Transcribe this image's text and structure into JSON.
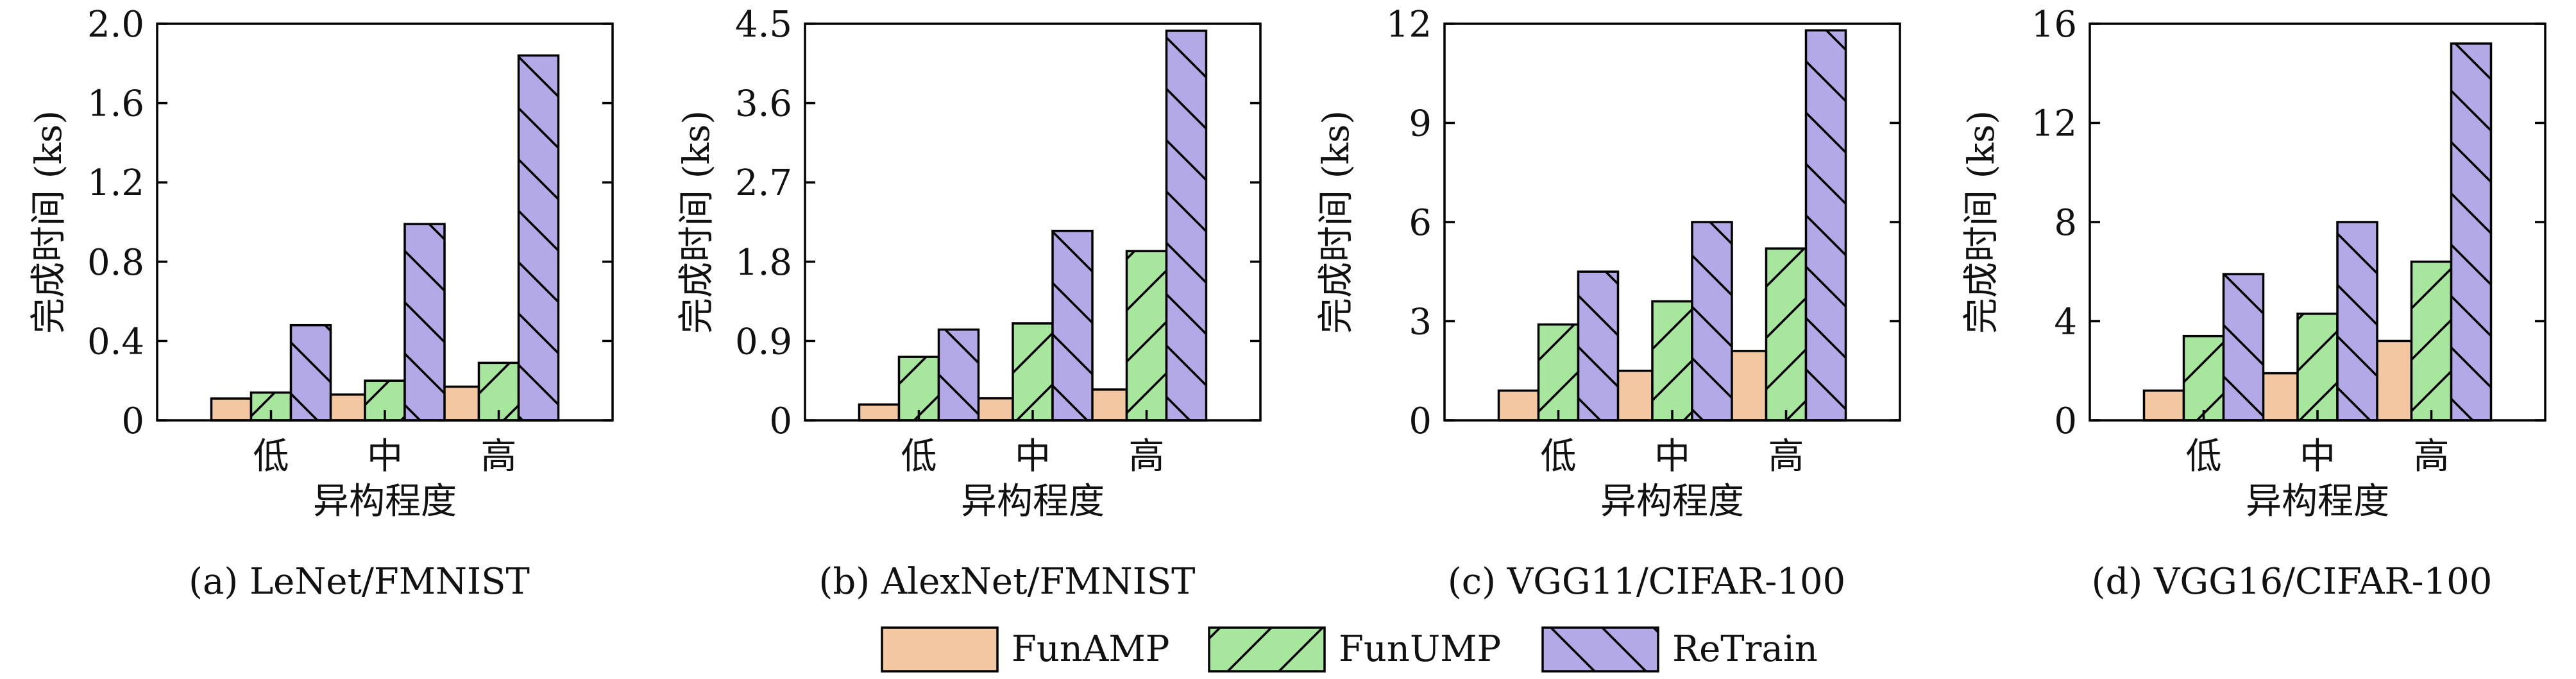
{
  "legend": [
    {
      "name": "FunAMP",
      "color": "#f4c7a3",
      "hatch": "none"
    },
    {
      "name": "FunUMP",
      "color": "#a8e6a0",
      "hatch": "forward"
    },
    {
      "name": "ReTrain",
      "color": "#b3a9e6",
      "hatch": "back"
    }
  ],
  "chart_data": [
    {
      "type": "bar",
      "caption": "(a) LeNet/FMNIST",
      "categories": [
        "低",
        "中",
        "高"
      ],
      "xlabel": "异构程度",
      "ylabel": "完成时间 (ks)",
      "ylim": [
        0,
        2.0
      ],
      "yticks": [
        0,
        0.4,
        0.8,
        1.2,
        1.6,
        2.0
      ],
      "ytick_labels": [
        "0",
        "0.4",
        "0.8",
        "1.2",
        "1.6",
        "2.0"
      ],
      "series": [
        {
          "name": "FunAMP",
          "values": [
            0.11,
            0.13,
            0.17
          ]
        },
        {
          "name": "FunUMP",
          "values": [
            0.14,
            0.2,
            0.29
          ]
        },
        {
          "name": "ReTrain",
          "values": [
            0.48,
            0.99,
            1.84
          ]
        }
      ]
    },
    {
      "type": "bar",
      "caption": "(b) AlexNet/FMNIST",
      "categories": [
        "低",
        "中",
        "高"
      ],
      "xlabel": "异构程度",
      "ylabel": "完成时间 (ks)",
      "ylim": [
        0,
        4.5
      ],
      "yticks": [
        0,
        0.9,
        1.8,
        2.7,
        3.6,
        4.5
      ],
      "ytick_labels": [
        "0",
        "0.9",
        "1.8",
        "2.7",
        "3.6",
        "4.5"
      ],
      "series": [
        {
          "name": "FunAMP",
          "values": [
            0.18,
            0.25,
            0.35
          ]
        },
        {
          "name": "FunUMP",
          "values": [
            0.72,
            1.1,
            1.92
          ]
        },
        {
          "name": "ReTrain",
          "values": [
            1.03,
            2.15,
            4.42
          ]
        }
      ]
    },
    {
      "type": "bar",
      "caption": "(c) VGG11/CIFAR-100",
      "categories": [
        "低",
        "中",
        "高"
      ],
      "xlabel": "异构程度",
      "ylabel": "完成时间 (ks)",
      "ylim": [
        0,
        12
      ],
      "yticks": [
        0,
        3,
        6,
        9,
        12
      ],
      "ytick_labels": [
        "0",
        "3",
        "6",
        "9",
        "12"
      ],
      "series": [
        {
          "name": "FunAMP",
          "values": [
            0.9,
            1.5,
            2.1
          ]
        },
        {
          "name": "FunUMP",
          "values": [
            2.9,
            3.6,
            5.2
          ]
        },
        {
          "name": "ReTrain",
          "values": [
            4.5,
            6.0,
            11.8
          ]
        }
      ]
    },
    {
      "type": "bar",
      "caption": "(d) VGG16/CIFAR-100",
      "categories": [
        "低",
        "中",
        "高"
      ],
      "xlabel": "异构程度",
      "ylabel": "完成时间 (ks)",
      "ylim": [
        0,
        16
      ],
      "yticks": [
        0,
        4,
        8,
        12,
        16
      ],
      "ytick_labels": [
        "0",
        "4",
        "8",
        "12",
        "16"
      ],
      "series": [
        {
          "name": "FunAMP",
          "values": [
            1.2,
            1.9,
            3.2
          ]
        },
        {
          "name": "FunUMP",
          "values": [
            3.4,
            4.3,
            6.4
          ]
        },
        {
          "name": "ReTrain",
          "values": [
            5.9,
            8.0,
            15.2
          ]
        }
      ]
    }
  ]
}
